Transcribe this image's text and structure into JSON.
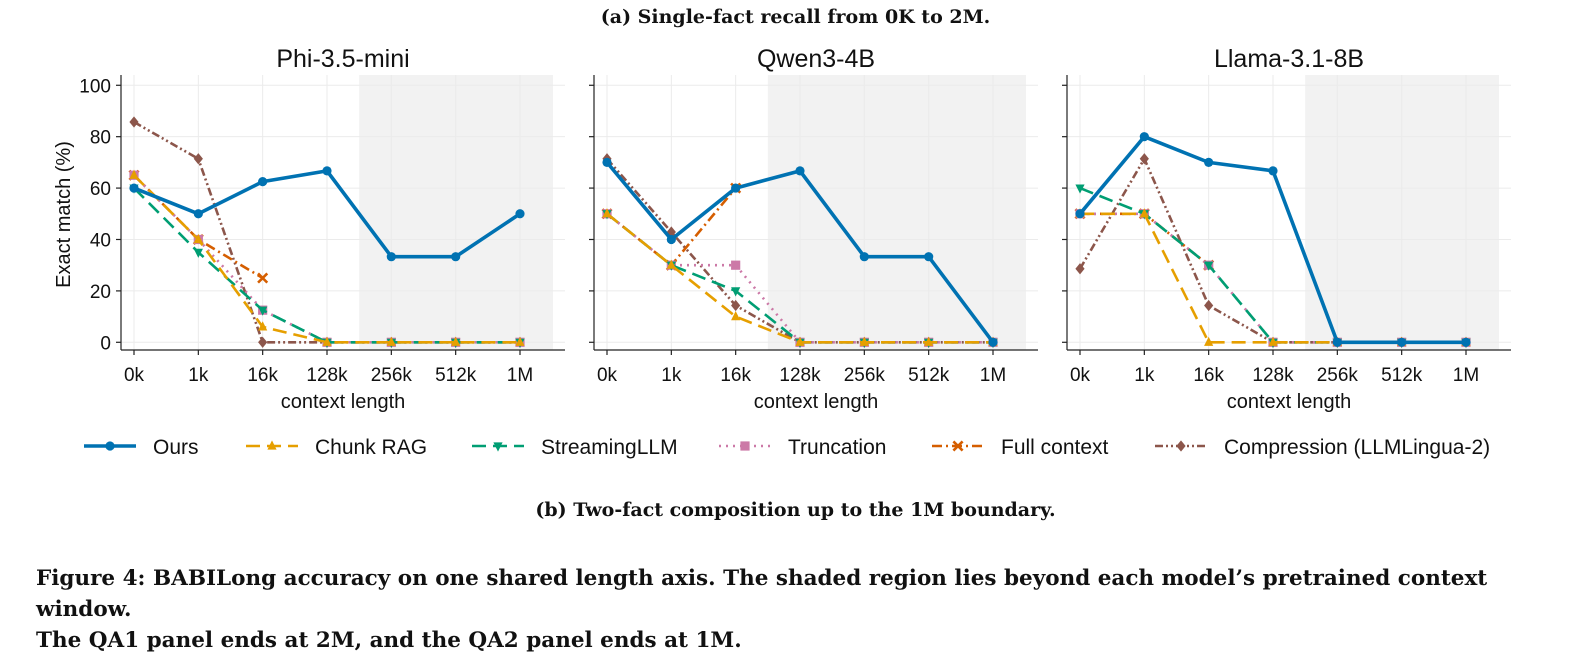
{
  "subtitle_a": "(a) Single-fact recall from 0K to 2M.",
  "subtitle_b": "(b) Two-fact composition up to the 1M boundary.",
  "caption": {
    "line1": "Figure 4: BABILong accuracy on one shared length axis. The shaded region lies beyond each model’s pretrained context window.",
    "line2": "The QA1 panel ends at 2M, and the QA2 panel ends at 1M."
  },
  "legend": {
    "placement": "bottom",
    "items": [
      {
        "label": "Ours",
        "color": "#0072b2",
        "marker": "circle",
        "dash": "solid"
      },
      {
        "label": "Chunk RAG",
        "color": "#e69f00",
        "marker": "triangle-up",
        "dash": "dashed"
      },
      {
        "label": "StreamingLLM",
        "color": "#009e73",
        "marker": "triangle-down",
        "dash": "dashed"
      },
      {
        "label": "Truncation",
        "color": "#cc79a7",
        "marker": "square",
        "dash": "dotted"
      },
      {
        "label": "Full context",
        "color": "#d55e00",
        "marker": "x",
        "dash": "dashdot"
      },
      {
        "label": "Compression (LLMLingua-2)",
        "color": "#8c564b",
        "marker": "diamond",
        "dash": "dashdotdot"
      }
    ]
  },
  "chart_data": [
    {
      "type": "line",
      "title": "Phi-3.5-mini",
      "xlabel": "context length",
      "ylabel": "Exact match (%)",
      "categories": [
        "0k",
        "1k",
        "16k",
        "128k",
        "256k",
        "512k",
        "1M"
      ],
      "yticks": [
        "0",
        "20",
        "40",
        "60",
        "80",
        "100"
      ],
      "ylim": [
        -3,
        104
      ],
      "grid": true,
      "shaded_from_category": 3.5,
      "series": [
        {
          "name": "Ours",
          "values": [
            60,
            50,
            62.5,
            66.7,
            33.3,
            33.3,
            50
          ]
        },
        {
          "name": "Chunk RAG",
          "values": [
            65,
            40,
            6,
            0,
            0,
            0,
            0
          ]
        },
        {
          "name": "StreamingLLM",
          "values": [
            60,
            35,
            12.5,
            0,
            0,
            0,
            0
          ]
        },
        {
          "name": "Truncation",
          "values": [
            65,
            40,
            12.5,
            0,
            0,
            0,
            0
          ]
        },
        {
          "name": "Full context",
          "values": [
            65,
            40,
            25,
            null,
            null,
            null,
            null
          ]
        },
        {
          "name": "Compression (LLMLingua-2)",
          "values": [
            85.7,
            71.4,
            0,
            0,
            0,
            0,
            0
          ]
        }
      ]
    },
    {
      "type": "line",
      "title": "Qwen3-4B",
      "xlabel": "context length",
      "ylabel": "",
      "categories": [
        "0k",
        "1k",
        "16k",
        "128k",
        "256k",
        "512k",
        "1M"
      ],
      "ylim": [
        -3,
        104
      ],
      "grid": true,
      "shaded_from_category": 2.5,
      "series": [
        {
          "name": "Ours",
          "values": [
            70,
            40,
            60,
            66.7,
            33.3,
            33.3,
            0
          ]
        },
        {
          "name": "Chunk RAG",
          "values": [
            50,
            30,
            10,
            0,
            0,
            0,
            0
          ]
        },
        {
          "name": "StreamingLLM",
          "values": [
            50,
            30,
            20,
            0,
            0,
            0,
            0
          ]
        },
        {
          "name": "Truncation",
          "values": [
            50,
            30,
            30,
            0,
            0,
            0,
            0
          ]
        },
        {
          "name": "Full context",
          "values": [
            50,
            30,
            60,
            null,
            null,
            null,
            null
          ]
        },
        {
          "name": "Compression (LLMLingua-2)",
          "values": [
            71.4,
            42.9,
            14.3,
            0,
            0,
            0,
            0
          ]
        }
      ]
    },
    {
      "type": "line",
      "title": "Llama-3.1-8B",
      "xlabel": "context length",
      "ylabel": "",
      "categories": [
        "0k",
        "1k",
        "16k",
        "128k",
        "256k",
        "512k",
        "1M"
      ],
      "ylim": [
        -3,
        104
      ],
      "grid": true,
      "shaded_from_category": 3.5,
      "series": [
        {
          "name": "Ours",
          "values": [
            50,
            80,
            70,
            66.7,
            0,
            0,
            0
          ]
        },
        {
          "name": "Chunk RAG",
          "values": [
            50,
            50,
            0,
            0,
            0,
            0,
            0
          ]
        },
        {
          "name": "StreamingLLM",
          "values": [
            60,
            50,
            30,
            0,
            0,
            0,
            0
          ]
        },
        {
          "name": "Truncation",
          "values": [
            50,
            50,
            30,
            0,
            0,
            0,
            0
          ]
        },
        {
          "name": "Full context",
          "values": [
            50,
            50,
            30,
            null,
            null,
            null,
            null
          ]
        },
        {
          "name": "Compression (LLMLingua-2)",
          "values": [
            28.6,
            71.4,
            14.3,
            0,
            0,
            0,
            0
          ]
        }
      ]
    }
  ]
}
